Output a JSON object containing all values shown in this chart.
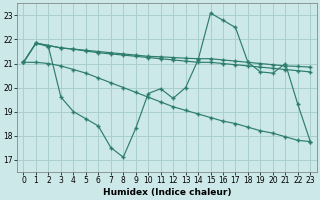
{
  "xlabel": "Humidex (Indice chaleur)",
  "bg_color": "#cce8e8",
  "grid_color": "#aacece",
  "line_color": "#2d7d6e",
  "xlim": [
    -0.5,
    23.5
  ],
  "ylim": [
    16.5,
    23.5
  ],
  "yticks": [
    17,
    18,
    19,
    20,
    21,
    22,
    23
  ],
  "xticks": [
    0,
    1,
    2,
    3,
    4,
    5,
    6,
    7,
    8,
    9,
    10,
    11,
    12,
    13,
    14,
    15,
    16,
    17,
    18,
    19,
    20,
    21,
    22,
    23
  ],
  "line1_x": [
    0,
    1,
    2,
    3,
    4,
    5,
    6,
    7,
    8,
    9,
    10,
    11,
    12,
    13,
    14,
    15,
    16,
    17,
    18,
    19,
    20,
    21,
    22,
    23
  ],
  "line1_y": [
    21.05,
    21.85,
    21.75,
    21.65,
    21.6,
    21.55,
    21.5,
    21.45,
    21.4,
    21.35,
    21.3,
    21.28,
    21.25,
    21.22,
    21.2,
    21.2,
    21.15,
    21.1,
    21.05,
    21.0,
    20.95,
    20.9,
    20.88,
    20.85
  ],
  "line2_x": [
    0,
    1,
    2,
    3,
    4,
    5,
    6,
    7,
    8,
    9,
    10,
    11,
    12,
    13,
    14,
    15,
    16,
    17,
    18,
    19,
    20,
    21,
    22,
    23
  ],
  "line2_y": [
    21.05,
    21.85,
    21.75,
    21.65,
    21.6,
    21.52,
    21.45,
    21.4,
    21.35,
    21.3,
    21.25,
    21.2,
    21.15,
    21.1,
    21.05,
    21.05,
    21.0,
    20.95,
    20.9,
    20.85,
    20.8,
    20.75,
    20.7,
    20.65
  ],
  "line3_x": [
    0,
    1,
    2,
    3,
    4,
    5,
    6,
    7,
    8,
    9,
    10,
    11,
    12,
    13,
    14,
    15,
    16,
    17,
    18,
    19,
    20,
    21,
    22,
    23
  ],
  "line3_y": [
    21.05,
    21.85,
    21.7,
    19.6,
    19.0,
    18.7,
    18.4,
    17.5,
    17.1,
    18.3,
    19.75,
    19.95,
    19.55,
    20.0,
    21.15,
    23.1,
    22.8,
    22.5,
    21.05,
    20.65,
    20.6,
    21.0,
    19.3,
    17.75
  ],
  "line4_x": [
    0,
    1,
    2,
    3,
    4,
    5,
    6,
    7,
    8,
    9,
    10,
    11,
    12,
    13,
    14,
    15,
    16,
    17,
    18,
    19,
    20,
    21,
    22,
    23
  ],
  "line4_y": [
    21.05,
    21.05,
    21.0,
    20.9,
    20.75,
    20.6,
    20.4,
    20.2,
    20.0,
    19.8,
    19.6,
    19.4,
    19.2,
    19.05,
    18.9,
    18.75,
    18.6,
    18.5,
    18.35,
    18.2,
    18.1,
    17.95,
    17.8,
    17.75
  ]
}
